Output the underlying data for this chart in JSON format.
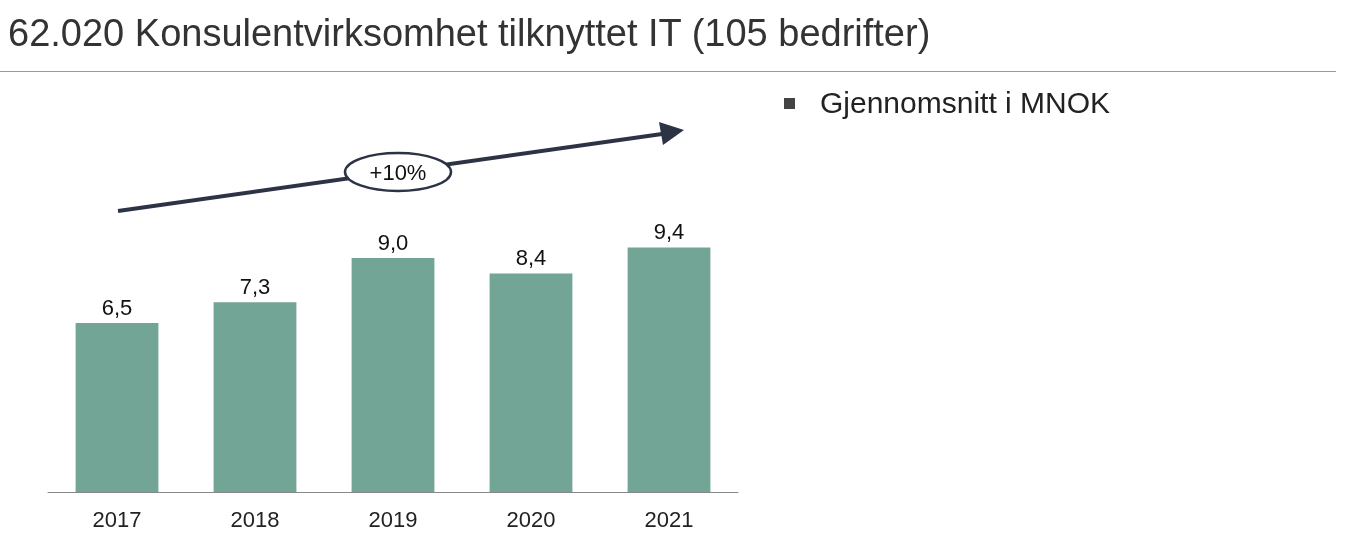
{
  "chart_data": {
    "type": "bar",
    "title": "62.020 Konsulentvirksomhet tilknyttet IT (105 bedrifter)",
    "categories": [
      "2017",
      "2018",
      "2019",
      "2020",
      "2021"
    ],
    "values": [
      6.5,
      7.3,
      9.0,
      8.4,
      9.4
    ],
    "value_labels": [
      "6,5",
      "7,3",
      "9,0",
      "8,4",
      "9,4"
    ],
    "color": "#72a596",
    "annotations": [
      "+10%",
      "Gjennomsnitt i MNOK"
    ]
  }
}
